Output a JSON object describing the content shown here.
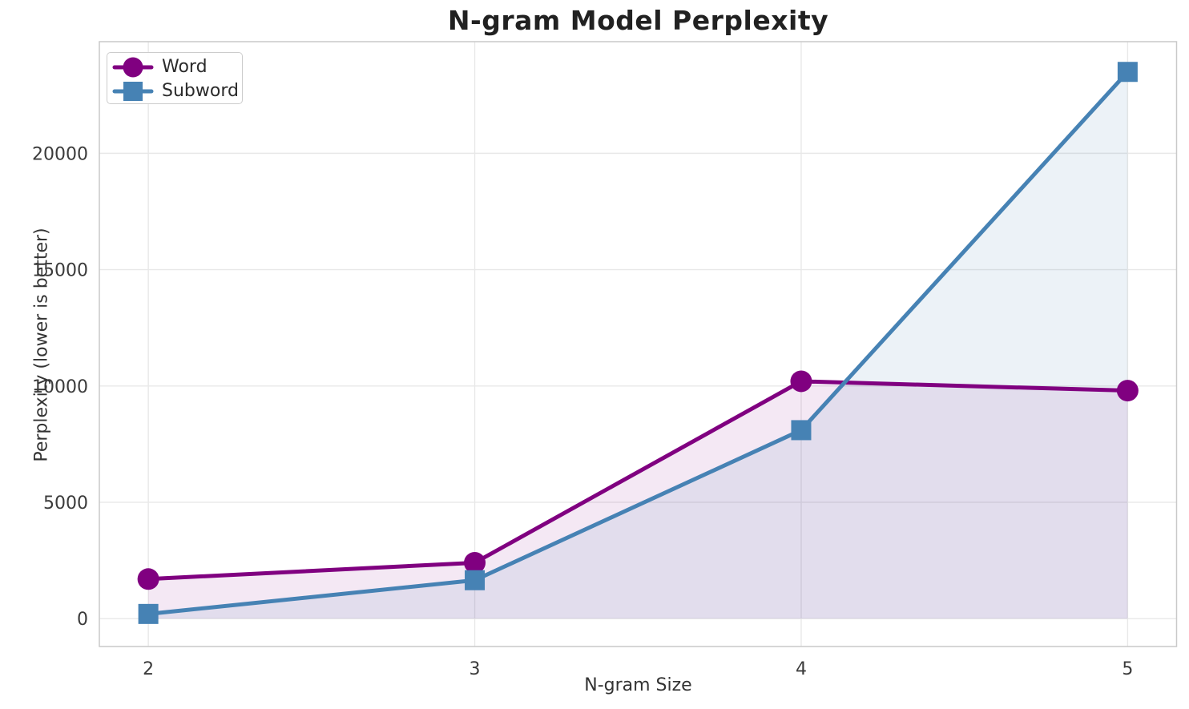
{
  "chart_data": {
    "type": "line",
    "title": "N-gram Model Perplexity",
    "xlabel": "N-gram Size",
    "ylabel": "Perplexity (lower is better)",
    "x": [
      2,
      3,
      4,
      5
    ],
    "series": [
      {
        "name": "Word",
        "values": [
          1700,
          2400,
          10200,
          9800
        ],
        "color": "#800080",
        "marker": "circle",
        "fill_opacity": 0.09
      },
      {
        "name": "Subword",
        "values": [
          200,
          1650,
          8100,
          23500
        ],
        "color": "#4682B4",
        "marker": "square",
        "fill_opacity": 0.1
      }
    ],
    "xticks": [
      2,
      3,
      4,
      5
    ],
    "yticks": [
      0,
      5000,
      10000,
      15000,
      20000
    ],
    "xlim": [
      1.85,
      5.15
    ],
    "ylim": [
      -1200,
      24800
    ],
    "grid": true,
    "area_fill_baseline": 0,
    "legend_position": "upper-left"
  },
  "colors": {
    "background": "#ffffff",
    "grid_line": "#e8e8e8",
    "plot_border": "#c9c9c9",
    "title_text": "#212121",
    "tick_text": "#3b3b3b",
    "axis_label_text": "#333333",
    "word_series": "#800080",
    "subword_series": "#4682B4"
  }
}
